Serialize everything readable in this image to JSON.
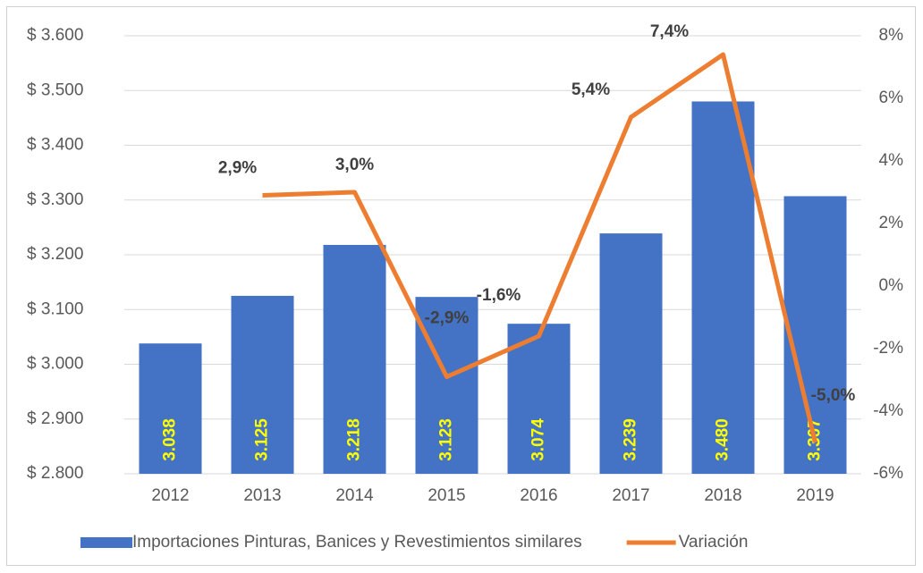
{
  "chart_data": {
    "type": "bar_line",
    "categories": [
      "2012",
      "2013",
      "2014",
      "2015",
      "2016",
      "2017",
      "2018",
      "2019"
    ],
    "series": [
      {
        "name": "Importaciones Pinturas, Banices y Revestimientos similares",
        "type": "bar",
        "color": "#4472c4",
        "values": [
          3038,
          3125,
          3218,
          3123,
          3074,
          3239,
          3480,
          3307
        ],
        "value_labels": [
          "3.038",
          "3.125",
          "3.218",
          "3.123",
          "3.074",
          "3.239",
          "3.480",
          "3.307"
        ],
        "value_label_color": "#ffff00"
      },
      {
        "name": "Variación",
        "type": "line",
        "axis": "y2",
        "color": "#ed7d31",
        "values": [
          null,
          2.9,
          3.0,
          -2.9,
          -1.6,
          5.4,
          7.4,
          -5.0
        ],
        "value_labels": [
          null,
          "2,9%",
          "3,0%",
          "-2,9%",
          "-1,6%",
          "5,4%",
          "7,4%",
          "-5,0%"
        ]
      }
    ],
    "ylim": [
      2800,
      3600
    ],
    "yticks": [
      {
        "value": 2800,
        "label": "$ 2.800"
      },
      {
        "value": 2900,
        "label": "$ 2.900"
      },
      {
        "value": 3000,
        "label": "$ 3.000"
      },
      {
        "value": 3100,
        "label": "$ 3.100"
      },
      {
        "value": 3200,
        "label": "$ 3.200"
      },
      {
        "value": 3300,
        "label": "$ 3.300"
      },
      {
        "value": 3400,
        "label": "$ 3.400"
      },
      {
        "value": 3500,
        "label": "$ 3.500"
      },
      {
        "value": 3600,
        "label": "$ 3.600"
      }
    ],
    "y2lim": [
      -6,
      8
    ],
    "y2ticks": [
      {
        "value": -6,
        "label": "-6%"
      },
      {
        "value": -4,
        "label": "-4%"
      },
      {
        "value": -2,
        "label": "-2%"
      },
      {
        "value": 0,
        "label": "0%"
      },
      {
        "value": 2,
        "label": "2%"
      },
      {
        "value": 4,
        "label": "4%"
      },
      {
        "value": 6,
        "label": "6%"
      },
      {
        "value": 8,
        "label": "8%"
      }
    ],
    "grid": true,
    "legend": "bottom"
  }
}
